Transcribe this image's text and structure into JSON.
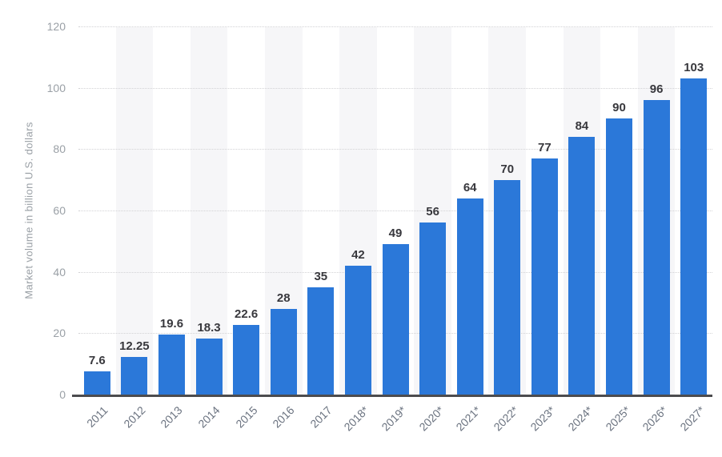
{
  "chart_data": {
    "type": "bar",
    "ylabel": "Market volume in billion U.S. dollars",
    "xlabel": "",
    "categories": [
      "2011",
      "2012",
      "2013",
      "2014",
      "2015",
      "2016",
      "2017",
      "2018*",
      "2019*",
      "2020*",
      "2021*",
      "2022*",
      "2023*",
      "2024*",
      "2025*",
      "2026*",
      "2027*"
    ],
    "values": [
      7.6,
      12.25,
      19.6,
      18.3,
      22.6,
      28,
      35,
      42,
      49,
      56,
      64,
      70,
      77,
      84,
      90,
      96,
      103
    ],
    "bar_labels": [
      "7.6",
      "12.25",
      "19.6",
      "18.3",
      "22.6",
      "28",
      "35",
      "42",
      "49",
      "56",
      "64",
      "70",
      "77",
      "84",
      "90",
      "96",
      "103"
    ],
    "yticks": [
      0,
      20,
      40,
      60,
      80,
      100,
      120
    ],
    "ylim": [
      0,
      120
    ],
    "grid": "horizontal-dotted",
    "legend": "none",
    "colors": {
      "bar": "#2b78d9",
      "value_label": "#38383d",
      "axis_tick_label": "#9aa0a6",
      "x_tick_label": "#6b7380",
      "stripe": "#f6f6f8",
      "gridline": "#d2d2d5",
      "baseline": "#4c4c4e",
      "background": "#ffffff"
    }
  }
}
